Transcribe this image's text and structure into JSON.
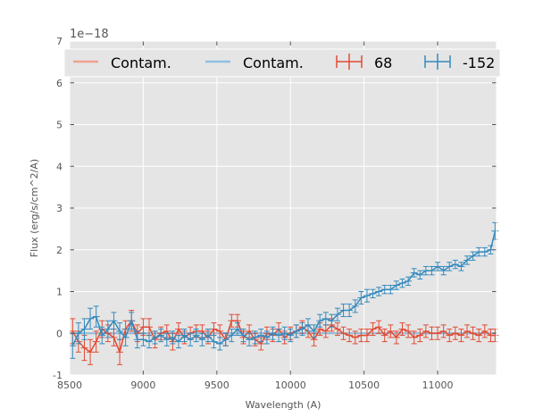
{
  "chart_data": {
    "type": "line",
    "title": "",
    "xlabel": "Wavelength (A)",
    "ylabel": "Flux (erg/s/cm^2/A)",
    "offset_text": "1e−18",
    "xlim": [
      8500,
      11400
    ],
    "ylim": [
      -1,
      7
    ],
    "xticks": [
      8500,
      9000,
      9500,
      10000,
      10500,
      11000
    ],
    "yticks": [
      -1,
      0,
      1,
      2,
      3,
      4,
      5,
      6,
      7
    ],
    "grid": true,
    "legend_position": "top",
    "legend": [
      {
        "label": "Contam.",
        "kind": "line",
        "color": "#f0a090"
      },
      {
        "label": "Contam.",
        "kind": "line",
        "color": "#8ec0e0"
      },
      {
        "label": "68",
        "kind": "errorbar",
        "color": "#e24a33"
      },
      {
        "label": "-152",
        "kind": "errorbar",
        "color": "#348abd"
      }
    ],
    "series": [
      {
        "name": "68",
        "color": "#e24a33",
        "x": [
          8520,
          8560,
          8600,
          8640,
          8680,
          8720,
          8760,
          8800,
          8840,
          8880,
          8920,
          8960,
          9000,
          9040,
          9080,
          9120,
          9160,
          9200,
          9240,
          9280,
          9320,
          9360,
          9400,
          9440,
          9480,
          9520,
          9560,
          9600,
          9640,
          9680,
          9720,
          9760,
          9800,
          9840,
          9880,
          9920,
          9960,
          10000,
          10040,
          10080,
          10120,
          10160,
          10200,
          10240,
          10280,
          10320,
          10360,
          10400,
          10440,
          10480,
          10520,
          10560,
          10600,
          10640,
          10680,
          10720,
          10760,
          10800,
          10840,
          10880,
          10920,
          10960,
          11000,
          11040,
          11080,
          11120,
          11160,
          11200,
          11240,
          11280,
          11320,
          11360,
          11390
        ],
        "y": [
          0.05,
          -0.2,
          -0.35,
          -0.45,
          -0.2,
          0.1,
          0.0,
          -0.1,
          -0.45,
          0.1,
          0.3,
          0.0,
          0.15,
          0.15,
          -0.15,
          0.0,
          0.05,
          -0.2,
          0.1,
          -0.1,
          0.0,
          0.05,
          0.05,
          -0.1,
          0.1,
          0.05,
          -0.15,
          0.3,
          0.3,
          -0.1,
          0.05,
          -0.15,
          -0.25,
          0.0,
          -0.05,
          0.1,
          -0.1,
          0.0,
          0.05,
          0.15,
          0.05,
          -0.15,
          0.1,
          0.05,
          0.2,
          0.1,
          0.0,
          -0.05,
          -0.1,
          -0.05,
          -0.05,
          0.1,
          0.15,
          -0.05,
          0.05,
          -0.1,
          0.1,
          0.05,
          -0.1,
          -0.05,
          0.05,
          0.0,
          0.0,
          0.05,
          -0.05,
          0.0,
          -0.05,
          0.05,
          0.0,
          -0.05,
          0.05,
          -0.05,
          -0.05
        ],
        "err": [
          0.3,
          0.25,
          0.3,
          0.3,
          0.25,
          0.2,
          0.2,
          0.2,
          0.3,
          0.2,
          0.25,
          0.2,
          0.2,
          0.2,
          0.2,
          0.15,
          0.15,
          0.2,
          0.15,
          0.15,
          0.15,
          0.15,
          0.15,
          0.15,
          0.15,
          0.15,
          0.15,
          0.15,
          0.15,
          0.15,
          0.15,
          0.15,
          0.15,
          0.15,
          0.15,
          0.15,
          0.15,
          0.15,
          0.15,
          0.15,
          0.15,
          0.15,
          0.15,
          0.15,
          0.15,
          0.15,
          0.15,
          0.15,
          0.15,
          0.15,
          0.15,
          0.15,
          0.15,
          0.15,
          0.15,
          0.15,
          0.15,
          0.15,
          0.15,
          0.15,
          0.15,
          0.15,
          0.15,
          0.15,
          0.15,
          0.15,
          0.15,
          0.15,
          0.15,
          0.15,
          0.15,
          0.15,
          0.15
        ]
      },
      {
        "name": "-152",
        "color": "#348abd",
        "x": [
          8520,
          8560,
          8600,
          8640,
          8680,
          8720,
          8760,
          8800,
          8840,
          8880,
          8920,
          8960,
          9000,
          9040,
          9080,
          9120,
          9160,
          9200,
          9240,
          9280,
          9320,
          9360,
          9400,
          9440,
          9480,
          9520,
          9560,
          9600,
          9640,
          9680,
          9720,
          9760,
          9800,
          9840,
          9880,
          9920,
          9960,
          10000,
          10040,
          10080,
          10120,
          10160,
          10200,
          10240,
          10280,
          10320,
          10360,
          10400,
          10440,
          10480,
          10520,
          10560,
          10600,
          10640,
          10680,
          10720,
          10760,
          10800,
          10840,
          10880,
          10920,
          10960,
          11000,
          11040,
          11080,
          11120,
          11160,
          11200,
          11240,
          11280,
          11320,
          11360,
          11390
        ],
        "y": [
          -0.3,
          0.0,
          0.1,
          0.35,
          0.4,
          -0.05,
          0.1,
          0.3,
          0.05,
          -0.1,
          0.3,
          -0.15,
          -0.15,
          -0.2,
          -0.1,
          -0.05,
          -0.15,
          -0.1,
          -0.2,
          -0.05,
          -0.15,
          -0.05,
          -0.15,
          -0.05,
          -0.2,
          -0.25,
          -0.15,
          -0.05,
          0.1,
          -0.05,
          -0.15,
          -0.1,
          -0.05,
          -0.1,
          0.0,
          -0.05,
          0.0,
          -0.05,
          0.05,
          0.1,
          0.2,
          0.05,
          0.3,
          0.35,
          0.3,
          0.45,
          0.55,
          0.55,
          0.65,
          0.85,
          0.9,
          0.95,
          1.0,
          1.05,
          1.05,
          1.15,
          1.2,
          1.25,
          1.45,
          1.4,
          1.5,
          1.5,
          1.6,
          1.5,
          1.6,
          1.65,
          1.6,
          1.75,
          1.85,
          1.95,
          1.95,
          2.0,
          2.45
        ],
        "err": [
          0.3,
          0.25,
          0.25,
          0.25,
          0.25,
          0.2,
          0.2,
          0.2,
          0.2,
          0.2,
          0.2,
          0.2,
          0.15,
          0.15,
          0.15,
          0.15,
          0.15,
          0.15,
          0.15,
          0.15,
          0.15,
          0.15,
          0.15,
          0.15,
          0.15,
          0.15,
          0.15,
          0.15,
          0.15,
          0.15,
          0.15,
          0.15,
          0.15,
          0.15,
          0.15,
          0.15,
          0.15,
          0.15,
          0.15,
          0.15,
          0.15,
          0.15,
          0.15,
          0.15,
          0.15,
          0.15,
          0.15,
          0.15,
          0.15,
          0.15,
          0.15,
          0.1,
          0.1,
          0.1,
          0.1,
          0.1,
          0.1,
          0.1,
          0.1,
          0.1,
          0.1,
          0.1,
          0.1,
          0.1,
          0.1,
          0.1,
          0.1,
          0.1,
          0.1,
          0.1,
          0.1,
          0.1,
          0.2
        ]
      }
    ],
    "contamination": [
      {
        "name": "Contam.",
        "color": "#f0a090",
        "value": 0
      },
      {
        "name": "Contam.",
        "color": "#8ec0e0",
        "value": 0
      }
    ]
  }
}
